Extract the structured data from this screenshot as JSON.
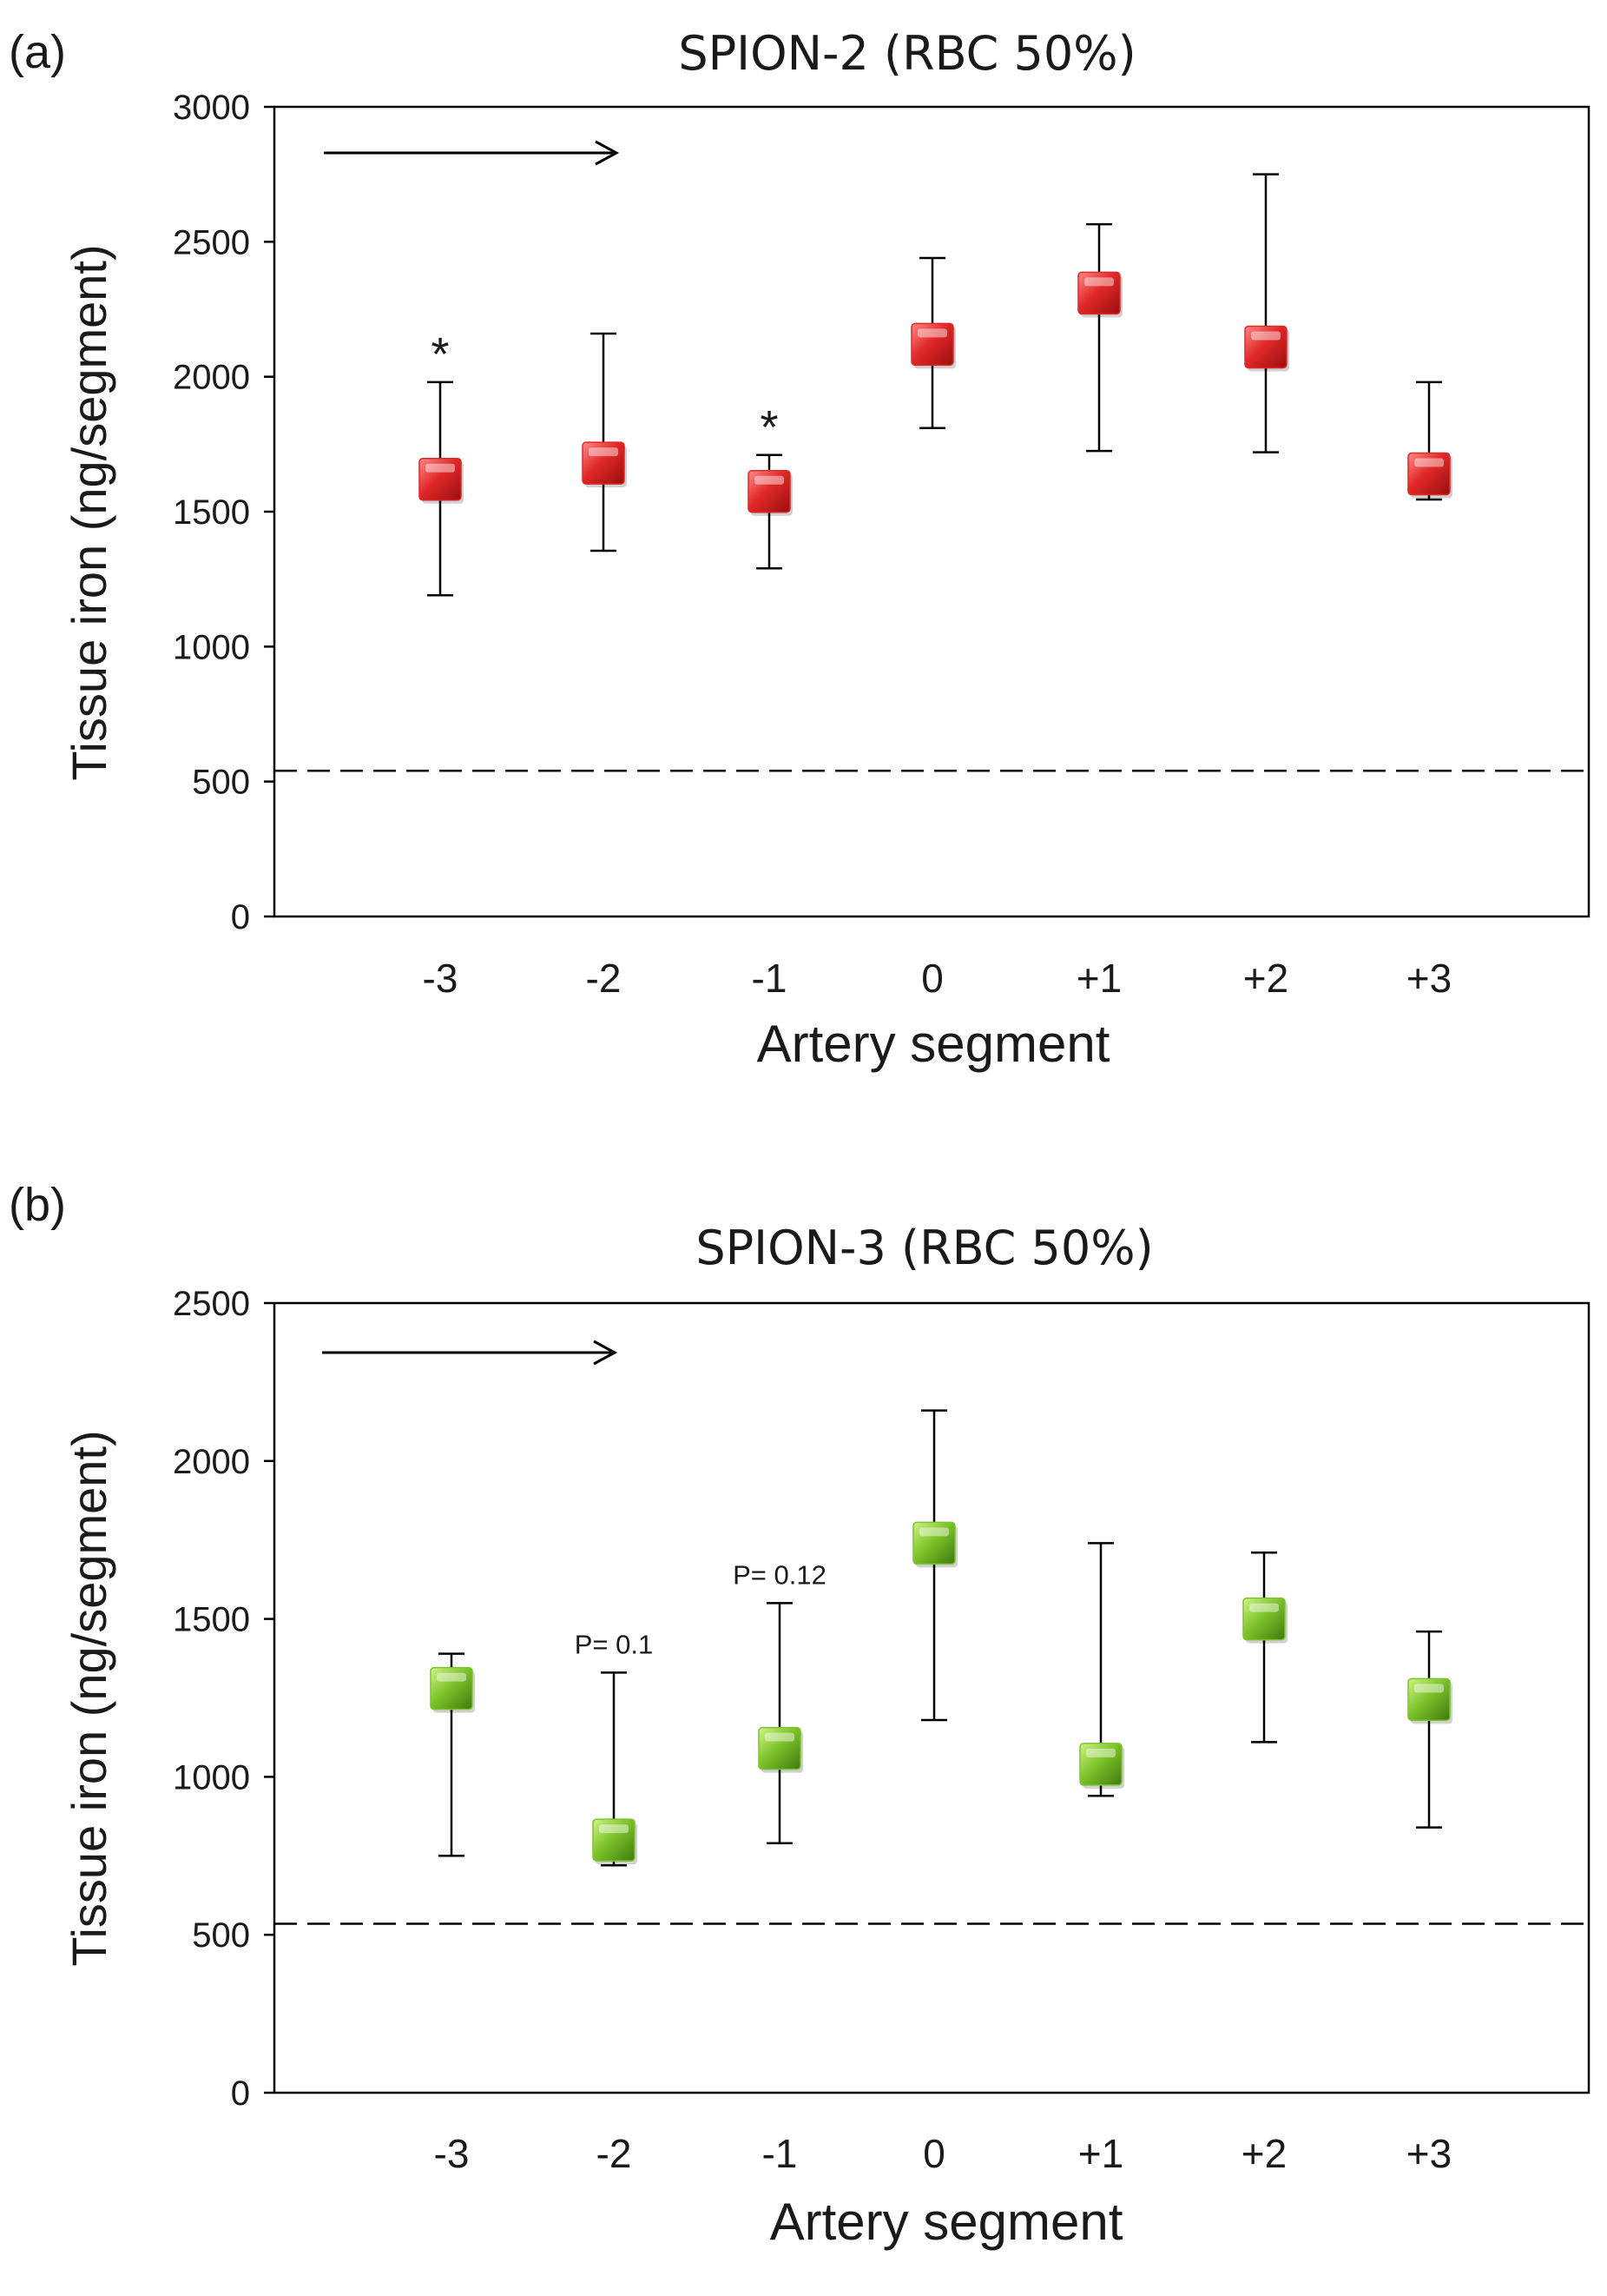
{
  "panels": [
    {
      "panel_label": "(a)",
      "title": "SPION-2 (RBC 50%)",
      "stars": [
        "*",
        "*"
      ]
    },
    {
      "panel_label": "(b)",
      "title": "SPION-3 (RBC 50%)",
      "p_labels": [
        "P= 0.1",
        "P= 0.12"
      ]
    }
  ],
  "chart_data": [
    {
      "type": "scatter",
      "title": "SPION-2 (RBC 50%)",
      "xlabel": "Artery segment",
      "ylabel": "Tissue iron (ng/segment)",
      "categories": [
        "-3",
        "-2",
        "-1",
        "0",
        "+1",
        "+2",
        "+3"
      ],
      "values": [
        1620,
        1680,
        1575,
        2120,
        2310,
        2110,
        1640
      ],
      "err_low": [
        1190,
        1355,
        1290,
        1810,
        1725,
        1720,
        1545
      ],
      "err_high": [
        1980,
        2160,
        1710,
        2440,
        2565,
        2750,
        1980
      ],
      "ylim": [
        0,
        3000
      ],
      "yticks": [
        0,
        500,
        1000,
        1500,
        2000,
        2500,
        3000
      ],
      "baseline": 540,
      "baseline_style": "dashed",
      "annotations": [
        {
          "category": "-3",
          "text": "*"
        },
        {
          "category": "-1",
          "text": "*"
        }
      ],
      "marker": "square",
      "marker_color": "#e02828",
      "flow_arrow": "left-to-right"
    },
    {
      "type": "scatter",
      "title": "SPION-3 (RBC 50%)",
      "xlabel": "Artery segment",
      "ylabel": "Tissue iron (ng/segment)",
      "categories": [
        "-3",
        "-2",
        "-1",
        "0",
        "+1",
        "+2",
        "+3"
      ],
      "values": [
        1280,
        800,
        1090,
        1740,
        1040,
        1500,
        1245
      ],
      "err_low": [
        750,
        720,
        790,
        1180,
        940,
        1110,
        840
      ],
      "err_high": [
        1390,
        1330,
        1550,
        2160,
        1740,
        1710,
        1460
      ],
      "ylim": [
        0,
        2500
      ],
      "yticks": [
        0,
        500,
        1000,
        1500,
        2000,
        2500
      ],
      "baseline": 535,
      "baseline_style": "dashed",
      "annotations": [
        {
          "category": "-2",
          "text": "P= 0.1"
        },
        {
          "category": "-1",
          "text": "P= 0.12"
        }
      ],
      "marker": "square",
      "marker_color": "#7cc42a",
      "flow_arrow": "left-to-right"
    }
  ]
}
